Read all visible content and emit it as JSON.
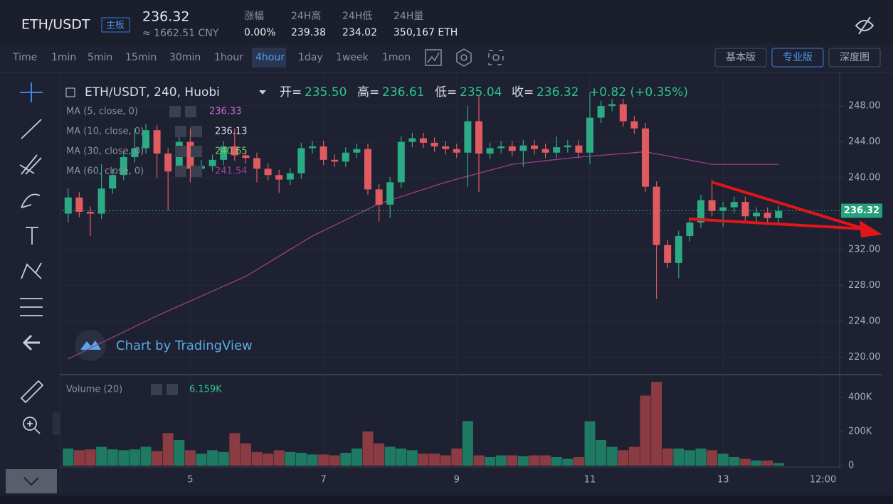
{
  "header": {
    "pair": "ETH/USDT",
    "badge": "主板",
    "price": "236.32",
    "cny": "≈ 1662.51 CNY",
    "stats": [
      {
        "label": "涨幅",
        "value": "0.00%"
      },
      {
        "label": "24H高",
        "value": "239.38"
      },
      {
        "label": "24H低",
        "value": "234.02"
      },
      {
        "label": "24H量",
        "value": "350,167 ETH"
      }
    ]
  },
  "toolbar": {
    "intervals": [
      "Time",
      "1min",
      "5min",
      "15min",
      "30min",
      "1hour",
      "4hour",
      "1day",
      "1week",
      "1mon"
    ],
    "selected_interval_index": 6,
    "views": [
      "基本版",
      "专业版",
      "深度图"
    ],
    "selected_view_index": 1
  },
  "chart_data": [
    {
      "type": "candlestick",
      "title": "ETH/USDT, 240, Huobi",
      "ohlc_legend": [
        {
          "label": "开=",
          "value": "235.50"
        },
        {
          "label": "高=",
          "value": "236.61"
        },
        {
          "label": "低=",
          "value": "235.04"
        },
        {
          "label": "收=",
          "value": "236.32"
        }
      ],
      "change": "+0.82 (+0.35%)",
      "ma_legend": [
        {
          "name": "MA (5, close, 0)",
          "value": "236.33",
          "color": "#c36bd6"
        },
        {
          "name": "MA (10, close, 0)",
          "value": "236.13",
          "color": "#d7dbe6"
        },
        {
          "name": "MA (30, close, 0)",
          "value": "240.65",
          "color": "#7fc16f"
        },
        {
          "name": "MA (60, close, 0)",
          "value": "241.54",
          "color": "#9b3f8e",
          "x": [
            0,
            8,
            16,
            22,
            28,
            34,
            40,
            46,
            52,
            58,
            64
          ],
          "values": [
            219.8,
            224.6,
            229.0,
            233.5,
            237.1,
            239.5,
            241.5,
            242.3,
            242.9,
            241.5,
            241.5
          ]
        }
      ],
      "watermark": "Chart by TradingView",
      "up_color": "#2bab83",
      "down_color": "#e05b5f",
      "open": [
        236.0,
        237.8,
        236.2,
        236.0,
        238.8,
        240.3,
        242.3,
        243.3,
        245.3,
        242.7,
        240.7,
        244.0,
        241.0,
        241.3,
        242.0,
        243.5,
        242.5,
        242.2,
        241.0,
        240.3,
        239.8,
        240.5,
        243.3,
        243.5,
        242.0,
        241.8,
        242.8,
        243.2,
        238.7,
        237.0,
        239.5,
        244.0,
        244.4,
        243.9,
        243.5,
        243.2,
        242.8,
        246.3,
        242.7,
        243.3,
        243.5,
        243.0,
        243.6,
        243.2,
        242.8,
        243.4,
        243.6,
        242.8,
        246.7,
        248.0,
        248.2,
        246.3,
        245.5,
        239.0,
        232.5,
        230.5,
        233.5,
        235.0,
        237.5,
        236.3,
        236.7,
        237.3,
        235.7,
        236.1,
        235.5
      ],
      "high": [
        238.8,
        238.4,
        236.8,
        241.5,
        241.0,
        243.0,
        245.5,
        246.0,
        245.9,
        243.3,
        244.6,
        245.5,
        242.0,
        242.6,
        244.1,
        245.5,
        243.1,
        242.8,
        241.6,
        240.9,
        241.1,
        243.9,
        244.1,
        244.1,
        242.6,
        243.4,
        243.8,
        243.8,
        239.3,
        240.1,
        244.6,
        245.0,
        245.0,
        244.5,
        244.1,
        243.8,
        248.0,
        249.1,
        243.9,
        244.1,
        244.1,
        244.2,
        244.2,
        243.8,
        244.6,
        244.2,
        244.2,
        249.5,
        248.6,
        248.8,
        248.8,
        246.9,
        246.1,
        239.6,
        233.1,
        234.1,
        235.6,
        238.1,
        239.8,
        237.3,
        237.9,
        237.9,
        236.7,
        236.7,
        236.9
      ],
      "low": [
        235.0,
        235.6,
        233.5,
        235.4,
        238.2,
        239.7,
        241.7,
        242.7,
        240.0,
        236.3,
        240.1,
        239.5,
        240.4,
        240.7,
        241.4,
        241.9,
        241.6,
        239.5,
        239.7,
        238.3,
        239.2,
        239.9,
        242.7,
        241.4,
        241.2,
        241.2,
        242.2,
        238.1,
        235.1,
        235.5,
        238.9,
        243.4,
        243.3,
        242.9,
        242.6,
        242.2,
        239.0,
        238.4,
        242.1,
        242.7,
        242.4,
        241.2,
        242.6,
        242.2,
        242.2,
        242.8,
        242.2,
        241.5,
        246.1,
        247.4,
        245.7,
        244.9,
        238.4,
        226.5,
        229.9,
        228.8,
        232.9,
        234.4,
        235.7,
        234.5,
        236.1,
        235.1,
        235.1,
        234.9,
        235.0
      ],
      "close": [
        237.8,
        236.2,
        236.0,
        238.8,
        240.3,
        242.3,
        243.3,
        245.3,
        242.7,
        240.7,
        244.0,
        241.0,
        241.3,
        242.0,
        243.5,
        242.5,
        242.2,
        241.0,
        240.3,
        239.8,
        240.5,
        243.3,
        243.5,
        242.0,
        241.8,
        242.8,
        243.2,
        238.7,
        237.0,
        239.5,
        244.0,
        244.4,
        243.9,
        243.5,
        243.2,
        242.8,
        246.3,
        242.7,
        243.3,
        243.5,
        243.0,
        243.6,
        243.2,
        242.8,
        243.4,
        243.6,
        242.8,
        246.7,
        248.0,
        248.2,
        246.3,
        245.5,
        239.0,
        232.5,
        230.5,
        233.5,
        235.0,
        237.5,
        236.3,
        236.7,
        237.3,
        235.7,
        236.1,
        235.5,
        236.3
      ],
      "last_price": 236.32,
      "last_price_color": "#26a17b",
      "xlim": [
        -0.5,
        69.5
      ],
      "xticks": [
        {
          "value": 11,
          "label": "5"
        },
        {
          "value": 23,
          "label": "7"
        },
        {
          "value": 35,
          "label": "9"
        },
        {
          "value": 47,
          "label": "11"
        },
        {
          "value": 59,
          "label": "13"
        },
        {
          "value": 68,
          "label": "12:00"
        }
      ],
      "ylim": [
        218.2,
        251.5
      ],
      "yticks": [
        {
          "value": 220,
          "label": "220.00"
        },
        {
          "value": 224,
          "label": "224.00"
        },
        {
          "value": 228,
          "label": "228.00"
        },
        {
          "value": 232,
          "label": "232.00"
        },
        {
          "value": 236,
          "label": "236.00"
        },
        {
          "value": 240,
          "label": "240.00"
        },
        {
          "value": 244,
          "label": "244.00"
        },
        {
          "value": 248,
          "label": "248.00"
        }
      ],
      "grid": true
    },
    {
      "type": "bar",
      "title": "Volume (20)",
      "current_value": "6.159K",
      "up_color": "#1f7a63",
      "down_color": "#8b3b42",
      "values": [
        100000,
        90000,
        95000,
        110000,
        95000,
        90000,
        95000,
        110000,
        85000,
        190000,
        150000,
        90000,
        70000,
        90000,
        80000,
        190000,
        130000,
        80000,
        70000,
        90000,
        80000,
        75000,
        65000,
        65000,
        60000,
        75000,
        100000,
        200000,
        130000,
        110000,
        100000,
        90000,
        70000,
        70000,
        60000,
        100000,
        260000,
        60000,
        50000,
        60000,
        60000,
        55000,
        60000,
        60000,
        50000,
        40000,
        50000,
        260000,
        150000,
        110000,
        90000,
        110000,
        410000,
        490000,
        100000,
        100000,
        90000,
        100000,
        90000,
        70000,
        50000,
        40000,
        30000,
        30000,
        15000
      ],
      "ylim": [
        0,
        520000
      ],
      "yticks": [
        0,
        {
          "value": 200000,
          "label": "200K"
        },
        {
          "value": 400000,
          "label": "400K"
        }
      ]
    }
  ]
}
